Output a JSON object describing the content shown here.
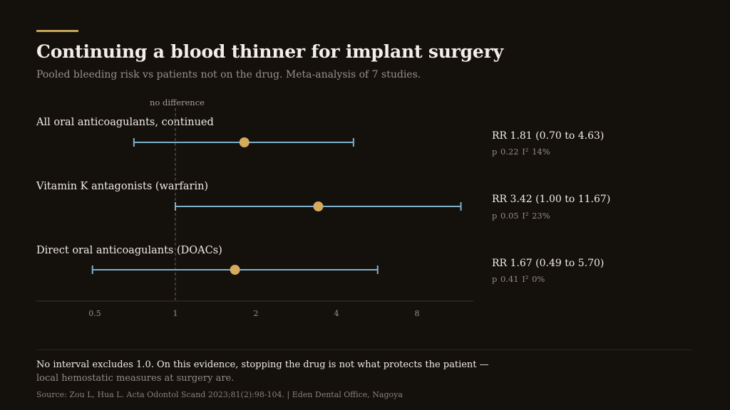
{
  "header": {
    "title": "Continuing a blood thinner for implant surgery",
    "subtitle": "Pooled bleeding risk vs patients not on the drug. Meta-analysis of 7 studies."
  },
  "chart_data": {
    "type": "forest",
    "title": "Continuing a blood thinner for implant surgery",
    "scale": "log2",
    "reference_line": {
      "value": 1,
      "label": "no difference"
    },
    "x_ticks": [
      0.5,
      1,
      2,
      4,
      8
    ],
    "x_tick_labels": [
      "0.5",
      "1",
      "2",
      "4",
      "8"
    ],
    "colors": {
      "ci": "#7fb0cc",
      "point": "#d4aa5e",
      "axis": "#3a352e",
      "reference": "#6b645a",
      "accent": "#c8a45a"
    },
    "rows": [
      {
        "label": "All oral anticoagulants, continued",
        "rr": 1.81,
        "lo": 0.7,
        "hi": 4.63,
        "stat": "RR 1.81  (0.70 to 4.63)",
        "sub": "p 0.22   I² 14%"
      },
      {
        "label": "Vitamin K antagonists (warfarin)",
        "rr": 3.42,
        "lo": 1.0,
        "hi": 11.67,
        "stat": "RR 3.42  (1.00 to 11.67)",
        "sub": "p 0.05   I² 23%"
      },
      {
        "label": "Direct oral anticoagulants (DOACs)",
        "rr": 1.67,
        "lo": 0.49,
        "hi": 5.7,
        "stat": "RR 1.67  (0.49 to 5.70)",
        "sub": "p 0.41   I² 0%"
      }
    ]
  },
  "footer": {
    "note_line1": "No interval excludes 1.0. On this evidence, stopping the drug is not what protects the patient —",
    "note_line2": "local hemostatic measures at surgery are.",
    "source": "Source: Zou L, Hua L. Acta Odontol Scand 2023;81(2):98-104.   |   Eden Dental Office, Nagoya"
  }
}
